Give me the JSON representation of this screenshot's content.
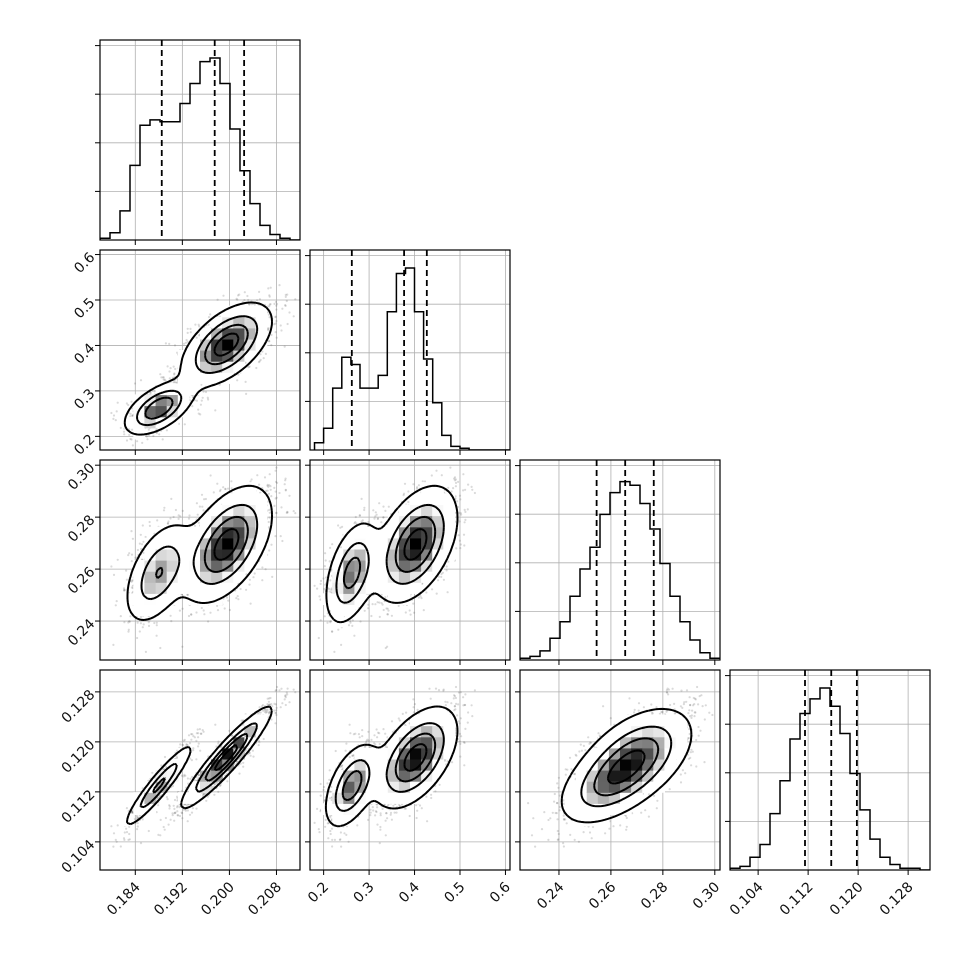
{
  "chart_data": {
    "type": "corner",
    "parameters": [
      {
        "range": [
          0.178,
          0.212
        ],
        "ticks": [
          0.184,
          0.192,
          0.2,
          0.208
        ],
        "tick_labels": [
          "0.184",
          "0.192",
          "0.200",
          "0.208"
        ],
        "quantiles": [
          0.1885,
          0.1975,
          0.2025
        ]
      },
      {
        "range": [
          0.17,
          0.61
        ],
        "ticks": [
          0.2,
          0.3,
          0.4,
          0.5,
          0.6
        ],
        "tick_labels": [
          "0.2",
          "0.3",
          "0.4",
          "0.5",
          "0.6"
        ],
        "quantiles": [
          0.262,
          0.377,
          0.427
        ]
      },
      {
        "range": [
          0.225,
          0.302
        ],
        "ticks": [
          0.24,
          0.26,
          0.28,
          0.3
        ],
        "tick_labels": [
          "0.24",
          "0.26",
          "0.28",
          "0.30"
        ],
        "quantiles": [
          0.2545,
          0.2655,
          0.2765
        ]
      },
      {
        "range": [
          0.0995,
          0.1315
        ],
        "ticks": [
          0.104,
          0.112,
          0.12,
          0.128
        ],
        "tick_labels": [
          "0.104",
          "0.112",
          "0.120",
          "0.128"
        ],
        "quantiles": [
          0.1115,
          0.1157,
          0.1198
        ]
      }
    ],
    "histograms": [
      {
        "bins_start": 0.178,
        "bin_width": 0.0017,
        "counts": [
          0.01,
          0.04,
          0.16,
          0.41,
          0.63,
          0.66,
          0.65,
          0.65,
          0.75,
          0.86,
          0.98,
          1.0,
          0.86,
          0.61,
          0.38,
          0.2,
          0.08,
          0.03,
          0.01,
          0.0
        ]
      },
      {
        "bins_start": 0.18,
        "bin_width": 0.02,
        "counts": [
          0.04,
          0.12,
          0.34,
          0.51,
          0.47,
          0.34,
          0.34,
          0.41,
          0.76,
          0.97,
          1.0,
          0.76,
          0.5,
          0.26,
          0.08,
          0.02,
          0.01,
          0.0,
          0.0,
          0.0,
          0.0,
          0.0
        ]
      },
      {
        "bins_start": 0.225,
        "bin_width": 0.00385,
        "counts": [
          0.01,
          0.02,
          0.05,
          0.12,
          0.21,
          0.35,
          0.5,
          0.62,
          0.8,
          0.92,
          0.98,
          0.96,
          0.86,
          0.72,
          0.53,
          0.35,
          0.21,
          0.11,
          0.04,
          0.01
        ]
      },
      {
        "bins_start": 0.0995,
        "bin_width": 0.0016,
        "counts": [
          0.01,
          0.02,
          0.07,
          0.14,
          0.31,
          0.49,
          0.72,
          0.86,
          0.94,
          1.0,
          0.9,
          0.75,
          0.53,
          0.33,
          0.17,
          0.07,
          0.03,
          0.01,
          0.01,
          0.0
        ]
      }
    ],
    "modes": [
      {
        "weight": 0.3,
        "mean": [
          0.188,
          0.262,
          0.2585,
          0.113
        ],
        "sd": [
          0.0028,
          0.028,
          0.0095,
          0.0032
        ]
      },
      {
        "weight": 0.7,
        "mean": [
          0.1995,
          0.402,
          0.2695,
          0.1175
        ],
        "sd": [
          0.0036,
          0.043,
          0.0105,
          0.0038
        ]
      }
    ],
    "grid": true
  }
}
